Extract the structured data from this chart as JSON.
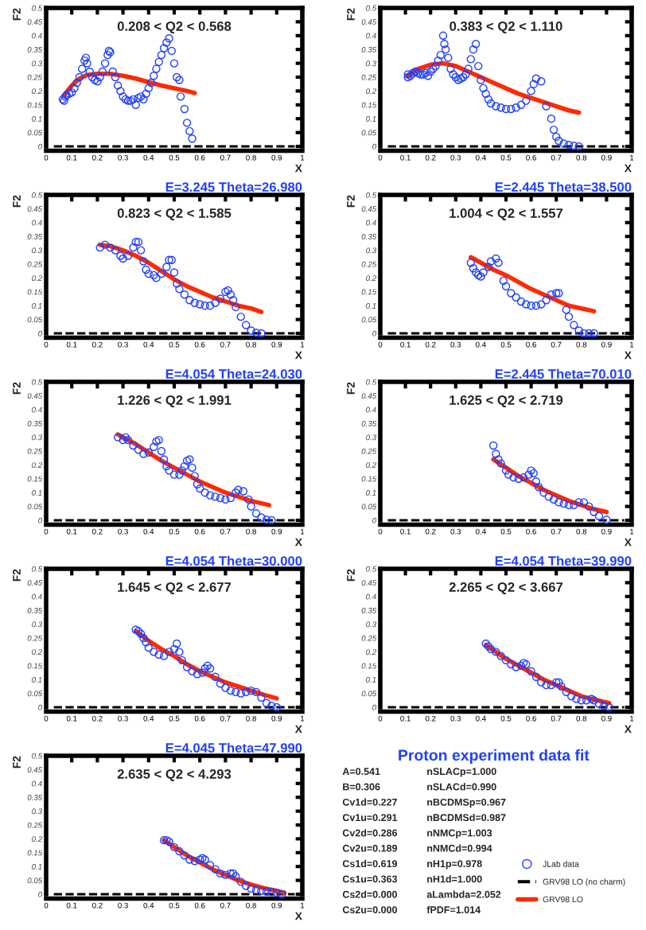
{
  "chart_data": [
    {
      "type": "scatter",
      "annotations": [
        "0.208 < Q2 < 0.568"
      ],
      "xlabel": "X",
      "ylabel": "F2",
      "xlim": [
        0,
        1
      ],
      "ylim": [
        0,
        0.5
      ],
      "xticks": [
        0,
        0.1,
        0.2,
        0.3,
        0.4,
        0.5,
        0.6,
        0.7,
        0.8,
        0.9,
        1
      ],
      "yticks": [
        0,
        0.05,
        0.1,
        0.15,
        0.2,
        0.25,
        0.3,
        0.35,
        0.4,
        0.45,
        0.5
      ],
      "series": [
        {
          "type": "scatter",
          "marker": "circle",
          "color": "#2040ff",
          "x": [
            0.065,
            0.07,
            0.075,
            0.08,
            0.09,
            0.1,
            0.11,
            0.12,
            0.13,
            0.14,
            0.15,
            0.155,
            0.16,
            0.17,
            0.18,
            0.19,
            0.2,
            0.21,
            0.22,
            0.23,
            0.24,
            0.245,
            0.25,
            0.26,
            0.27,
            0.28,
            0.29,
            0.3,
            0.31,
            0.32,
            0.33,
            0.34,
            0.35,
            0.36,
            0.37,
            0.38,
            0.39,
            0.4,
            0.41,
            0.42,
            0.43,
            0.44,
            0.45,
            0.46,
            0.47,
            0.48,
            0.49,
            0.5,
            0.51,
            0.52,
            0.525,
            0.54,
            0.55,
            0.56,
            0.57
          ],
          "values": [
            0.17,
            0.165,
            0.18,
            0.185,
            0.19,
            0.195,
            0.21,
            0.23,
            0.25,
            0.28,
            0.31,
            0.32,
            0.3,
            0.27,
            0.25,
            0.24,
            0.235,
            0.25,
            0.27,
            0.3,
            0.33,
            0.345,
            0.34,
            0.27,
            0.25,
            0.22,
            0.2,
            0.18,
            0.17,
            0.165,
            0.165,
            0.17,
            0.15,
            0.175,
            0.18,
            0.17,
            0.19,
            0.21,
            0.23,
            0.255,
            0.28,
            0.305,
            0.33,
            0.355,
            0.375,
            0.39,
            0.345,
            0.3,
            0.25,
            0.24,
            0.18,
            0.135,
            0.085,
            0.055,
            0.028
          ]
        },
        {
          "type": "line",
          "color": "#ff2a00",
          "line_style": "solid",
          "x": [
            0.07,
            0.1,
            0.13,
            0.16,
            0.2,
            0.25,
            0.3,
            0.35,
            0.4,
            0.45,
            0.5,
            0.55,
            0.58
          ],
          "values": [
            0.185,
            0.22,
            0.245,
            0.258,
            0.262,
            0.262,
            0.255,
            0.245,
            0.232,
            0.22,
            0.21,
            0.2,
            0.193
          ]
        },
        {
          "type": "line",
          "color": "#000000",
          "line_style": "dashed",
          "x": [
            0.03,
            0.97
          ],
          "values": [
            0,
            0
          ]
        }
      ]
    },
    {
      "type": "scatter",
      "annotations": [
        "0.383 < Q2 < 1.110"
      ],
      "xlabel": "X",
      "ylabel": "F2",
      "xlim": [
        0,
        1
      ],
      "ylim": [
        0,
        0.5
      ],
      "xticks": [
        0,
        0.1,
        0.2,
        0.3,
        0.4,
        0.5,
        0.6,
        0.7,
        0.8,
        0.9,
        1
      ],
      "yticks": [
        0,
        0.05,
        0.1,
        0.15,
        0.2,
        0.25,
        0.3,
        0.35,
        0.4,
        0.45,
        0.5
      ],
      "series": [
        {
          "type": "scatter",
          "marker": "circle",
          "color": "#2040ff",
          "x": [
            0.11,
            0.11,
            0.12,
            0.13,
            0.14,
            0.15,
            0.16,
            0.17,
            0.18,
            0.19,
            0.2,
            0.21,
            0.22,
            0.23,
            0.24,
            0.25,
            0.255,
            0.26,
            0.27,
            0.28,
            0.29,
            0.3,
            0.31,
            0.32,
            0.33,
            0.34,
            0.35,
            0.36,
            0.37,
            0.38,
            0.39,
            0.4,
            0.41,
            0.42,
            0.43,
            0.44,
            0.46,
            0.48,
            0.5,
            0.52,
            0.54,
            0.56,
            0.58,
            0.6,
            0.61,
            0.62,
            0.64,
            0.66,
            0.68,
            0.69,
            0.7,
            0.71,
            0.73,
            0.75,
            0.77,
            0.79
          ],
          "values": [
            0.26,
            0.25,
            0.255,
            0.265,
            0.27,
            0.265,
            0.26,
            0.26,
            0.265,
            0.255,
            0.27,
            0.28,
            0.29,
            0.31,
            0.33,
            0.4,
            0.37,
            0.35,
            0.32,
            0.28,
            0.26,
            0.25,
            0.24,
            0.245,
            0.25,
            0.26,
            0.28,
            0.315,
            0.35,
            0.37,
            0.29,
            0.24,
            0.21,
            0.19,
            0.17,
            0.155,
            0.145,
            0.14,
            0.135,
            0.135,
            0.14,
            0.15,
            0.165,
            0.2,
            0.225,
            0.245,
            0.235,
            0.145,
            0.1,
            0.06,
            0.035,
            0.02,
            0.01,
            0.005,
            0.002,
            0
          ]
        },
        {
          "type": "line",
          "color": "#ff2a00",
          "line_style": "solid",
          "x": [
            0.11,
            0.15,
            0.2,
            0.25,
            0.3,
            0.35,
            0.4,
            0.45,
            0.5,
            0.55,
            0.6,
            0.65,
            0.7,
            0.75,
            0.79
          ],
          "values": [
            0.255,
            0.28,
            0.295,
            0.3,
            0.29,
            0.27,
            0.25,
            0.23,
            0.21,
            0.19,
            0.175,
            0.16,
            0.145,
            0.13,
            0.122
          ]
        },
        {
          "type": "line",
          "color": "#000000",
          "line_style": "dashed",
          "x": [
            0.03,
            0.97
          ],
          "values": [
            0,
            0
          ]
        }
      ]
    },
    {
      "type": "scatter",
      "title": "E=3.245 Theta=26.980",
      "annotations": [
        "0.823 < Q2 < 1.585"
      ],
      "xlabel": "X",
      "ylabel": "F2",
      "xlim": [
        0,
        1
      ],
      "ylim": [
        0,
        0.5
      ],
      "xticks": [
        0,
        0.1,
        0.2,
        0.3,
        0.4,
        0.5,
        0.6,
        0.7,
        0.8,
        0.9,
        1
      ],
      "yticks": [
        0,
        0.05,
        0.1,
        0.15,
        0.2,
        0.25,
        0.3,
        0.35,
        0.4,
        0.45,
        0.5
      ],
      "series": [
        {
          "type": "scatter",
          "marker": "circle",
          "color": "#2040ff",
          "x": [
            0.21,
            0.23,
            0.25,
            0.27,
            0.29,
            0.3,
            0.32,
            0.34,
            0.35,
            0.36,
            0.37,
            0.38,
            0.39,
            0.4,
            0.42,
            0.43,
            0.45,
            0.47,
            0.48,
            0.49,
            0.5,
            0.51,
            0.52,
            0.54,
            0.56,
            0.58,
            0.6,
            0.62,
            0.64,
            0.66,
            0.68,
            0.7,
            0.71,
            0.72,
            0.73,
            0.74,
            0.76,
            0.78,
            0.8,
            0.82,
            0.84
          ],
          "values": [
            0.31,
            0.32,
            0.31,
            0.3,
            0.28,
            0.27,
            0.28,
            0.31,
            0.33,
            0.33,
            0.3,
            0.26,
            0.23,
            0.215,
            0.21,
            0.2,
            0.215,
            0.24,
            0.265,
            0.265,
            0.22,
            0.18,
            0.16,
            0.14,
            0.12,
            0.11,
            0.105,
            0.1,
            0.1,
            0.11,
            0.125,
            0.15,
            0.155,
            0.14,
            0.12,
            0.095,
            0.06,
            0.03,
            0.01,
            0.002,
            0
          ]
        },
        {
          "type": "line",
          "color": "#ff2a00",
          "line_style": "solid",
          "x": [
            0.21,
            0.25,
            0.3,
            0.35,
            0.4,
            0.45,
            0.5,
            0.55,
            0.6,
            0.65,
            0.7,
            0.75,
            0.8,
            0.84
          ],
          "values": [
            0.32,
            0.315,
            0.3,
            0.28,
            0.255,
            0.225,
            0.195,
            0.17,
            0.15,
            0.13,
            0.115,
            0.1,
            0.09,
            0.077
          ]
        },
        {
          "type": "line",
          "color": "#000000",
          "line_style": "dashed",
          "x": [
            0.03,
            0.97
          ],
          "values": [
            0,
            0
          ]
        }
      ]
    },
    {
      "type": "scatter",
      "title": "E=2.445 Theta=38.500",
      "annotations": [
        "1.004 < Q2 < 1.557"
      ],
      "xlabel": "X",
      "ylabel": "F2",
      "xlim": [
        0,
        1
      ],
      "ylim": [
        0,
        0.5
      ],
      "xticks": [
        0,
        0.1,
        0.2,
        0.3,
        0.4,
        0.5,
        0.6,
        0.7,
        0.8,
        0.9,
        1
      ],
      "yticks": [
        0,
        0.05,
        0.1,
        0.15,
        0.2,
        0.25,
        0.3,
        0.35,
        0.4,
        0.45,
        0.5
      ],
      "series": [
        {
          "type": "scatter",
          "marker": "circle",
          "color": "#2040ff",
          "x": [
            0.36,
            0.37,
            0.38,
            0.39,
            0.4,
            0.41,
            0.43,
            0.44,
            0.46,
            0.47,
            0.49,
            0.5,
            0.52,
            0.54,
            0.56,
            0.58,
            0.6,
            0.62,
            0.64,
            0.66,
            0.68,
            0.7,
            0.71,
            0.74,
            0.75,
            0.77,
            0.79,
            0.81,
            0.83,
            0.85
          ],
          "values": [
            0.255,
            0.235,
            0.22,
            0.21,
            0.205,
            0.22,
            0.24,
            0.26,
            0.27,
            0.255,
            0.19,
            0.17,
            0.145,
            0.13,
            0.115,
            0.105,
            0.1,
            0.1,
            0.105,
            0.12,
            0.14,
            0.145,
            0.145,
            0.085,
            0.06,
            0.03,
            0.01,
            0,
            0,
            0
          ]
        },
        {
          "type": "line",
          "color": "#ff2a00",
          "line_style": "solid",
          "x": [
            0.36,
            0.4,
            0.45,
            0.5,
            0.55,
            0.6,
            0.65,
            0.7,
            0.75,
            0.8,
            0.85
          ],
          "values": [
            0.275,
            0.255,
            0.23,
            0.21,
            0.185,
            0.16,
            0.14,
            0.12,
            0.1,
            0.09,
            0.08
          ]
        },
        {
          "type": "line",
          "color": "#000000",
          "line_style": "dashed",
          "x": [
            0.03,
            0.97
          ],
          "values": [
            0,
            0
          ]
        }
      ]
    },
    {
      "type": "scatter",
      "title": "E=4.054 Theta=24.030",
      "annotations": [
        "1.226 < Q2 < 1.991"
      ],
      "xlabel": "X",
      "ylabel": "F2",
      "xlim": [
        0,
        1
      ],
      "ylim": [
        0,
        0.5
      ],
      "xticks": [
        0,
        0.1,
        0.2,
        0.3,
        0.4,
        0.5,
        0.6,
        0.7,
        0.8,
        0.9,
        1
      ],
      "yticks": [
        0,
        0.05,
        0.1,
        0.15,
        0.2,
        0.25,
        0.3,
        0.35,
        0.4,
        0.45,
        0.5
      ],
      "series": [
        {
          "type": "scatter",
          "marker": "circle",
          "color": "#2040ff",
          "x": [
            0.28,
            0.3,
            0.31,
            0.32,
            0.34,
            0.36,
            0.38,
            0.4,
            0.42,
            0.43,
            0.44,
            0.45,
            0.46,
            0.47,
            0.48,
            0.5,
            0.52,
            0.53,
            0.54,
            0.55,
            0.56,
            0.57,
            0.58,
            0.59,
            0.6,
            0.62,
            0.64,
            0.66,
            0.68,
            0.7,
            0.72,
            0.74,
            0.75,
            0.77,
            0.79,
            0.8,
            0.82,
            0.84,
            0.86,
            0.88
          ],
          "values": [
            0.3,
            0.29,
            0.3,
            0.29,
            0.27,
            0.255,
            0.24,
            0.245,
            0.265,
            0.285,
            0.29,
            0.25,
            0.22,
            0.195,
            0.18,
            0.165,
            0.165,
            0.18,
            0.195,
            0.215,
            0.22,
            0.19,
            0.16,
            0.13,
            0.115,
            0.1,
            0.09,
            0.085,
            0.08,
            0.075,
            0.08,
            0.1,
            0.11,
            0.105,
            0.075,
            0.05,
            0.025,
            0.01,
            0.002,
            0
          ]
        },
        {
          "type": "line",
          "color": "#ff2a00",
          "line_style": "solid",
          "x": [
            0.28,
            0.35,
            0.4,
            0.45,
            0.5,
            0.55,
            0.6,
            0.65,
            0.7,
            0.75,
            0.8,
            0.87
          ],
          "values": [
            0.31,
            0.275,
            0.245,
            0.215,
            0.19,
            0.165,
            0.14,
            0.12,
            0.1,
            0.085,
            0.07,
            0.055
          ]
        },
        {
          "type": "line",
          "color": "#000000",
          "line_style": "dashed",
          "x": [
            0.03,
            0.97
          ],
          "values": [
            0,
            0
          ]
        }
      ]
    },
    {
      "type": "scatter",
      "title": "E=2.445 Theta=70.010",
      "annotations": [
        "1.625 < Q2 < 2.719"
      ],
      "xlabel": "X",
      "ylabel": "F2",
      "xlim": [
        0,
        1
      ],
      "ylim": [
        0,
        0.5
      ],
      "xticks": [
        0,
        0.1,
        0.2,
        0.3,
        0.4,
        0.5,
        0.6,
        0.7,
        0.8,
        0.9,
        1
      ],
      "yticks": [
        0,
        0.05,
        0.1,
        0.15,
        0.2,
        0.25,
        0.3,
        0.35,
        0.4,
        0.45,
        0.5
      ],
      "series": [
        {
          "type": "scatter",
          "marker": "circle",
          "color": "#2040ff",
          "x": [
            0.45,
            0.46,
            0.47,
            0.48,
            0.5,
            0.51,
            0.53,
            0.55,
            0.57,
            0.59,
            0.6,
            0.61,
            0.62,
            0.63,
            0.65,
            0.67,
            0.69,
            0.71,
            0.73,
            0.75,
            0.77,
            0.79,
            0.81,
            0.83,
            0.85,
            0.87,
            0.9
          ],
          "values": [
            0.27,
            0.24,
            0.22,
            0.205,
            0.18,
            0.165,
            0.155,
            0.15,
            0.155,
            0.165,
            0.18,
            0.17,
            0.14,
            0.12,
            0.1,
            0.085,
            0.075,
            0.065,
            0.06,
            0.055,
            0.055,
            0.065,
            0.065,
            0.05,
            0.03,
            0.015,
            0.002
          ]
        },
        {
          "type": "line",
          "color": "#ff2a00",
          "line_style": "solid",
          "x": [
            0.45,
            0.5,
            0.55,
            0.6,
            0.65,
            0.7,
            0.75,
            0.8,
            0.85,
            0.9
          ],
          "values": [
            0.22,
            0.19,
            0.16,
            0.135,
            0.11,
            0.09,
            0.07,
            0.055,
            0.04,
            0.03
          ]
        },
        {
          "type": "line",
          "color": "#000000",
          "line_style": "dashed",
          "x": [
            0.03,
            0.97
          ],
          "values": [
            0,
            0
          ]
        }
      ]
    },
    {
      "type": "scatter",
      "title": "E=4.054 Theta=30.000",
      "annotations": [
        "1.645 < Q2 < 2.677"
      ],
      "xlabel": "X",
      "ylabel": "F2",
      "xlim": [
        0,
        1
      ],
      "ylim": [
        0,
        0.5
      ],
      "xticks": [
        0,
        0.1,
        0.2,
        0.3,
        0.4,
        0.5,
        0.6,
        0.7,
        0.8,
        0.9,
        1
      ],
      "yticks": [
        0,
        0.05,
        0.1,
        0.15,
        0.2,
        0.25,
        0.3,
        0.35,
        0.4,
        0.45,
        0.5
      ],
      "series": [
        {
          "type": "scatter",
          "marker": "circle",
          "color": "#2040ff",
          "x": [
            0.35,
            0.36,
            0.37,
            0.38,
            0.39,
            0.4,
            0.42,
            0.44,
            0.46,
            0.48,
            0.5,
            0.51,
            0.52,
            0.53,
            0.55,
            0.57,
            0.59,
            0.61,
            0.62,
            0.63,
            0.64,
            0.66,
            0.68,
            0.7,
            0.72,
            0.74,
            0.76,
            0.78,
            0.8,
            0.82,
            0.84,
            0.86,
            0.88,
            0.9
          ],
          "values": [
            0.28,
            0.275,
            0.265,
            0.25,
            0.235,
            0.215,
            0.2,
            0.19,
            0.185,
            0.2,
            0.21,
            0.23,
            0.2,
            0.17,
            0.145,
            0.13,
            0.12,
            0.125,
            0.14,
            0.15,
            0.14,
            0.11,
            0.085,
            0.07,
            0.06,
            0.055,
            0.05,
            0.055,
            0.06,
            0.055,
            0.035,
            0.015,
            0.005,
            0
          ]
        },
        {
          "type": "line",
          "color": "#ff2a00",
          "line_style": "solid",
          "x": [
            0.35,
            0.4,
            0.45,
            0.5,
            0.55,
            0.6,
            0.65,
            0.7,
            0.75,
            0.8,
            0.85,
            0.9
          ],
          "values": [
            0.275,
            0.24,
            0.21,
            0.185,
            0.155,
            0.13,
            0.11,
            0.09,
            0.075,
            0.06,
            0.045,
            0.032
          ]
        },
        {
          "type": "line",
          "color": "#000000",
          "line_style": "dashed",
          "x": [
            0.03,
            0.97
          ],
          "values": [
            0,
            0
          ]
        }
      ]
    },
    {
      "type": "scatter",
      "title": "E=4.054 Theta=39.990",
      "annotations": [
        "2.265 < Q2 < 3.667"
      ],
      "xlabel": "X",
      "ylabel": "F2",
      "xlim": [
        0,
        1
      ],
      "ylim": [
        0,
        0.5
      ],
      "xticks": [
        0,
        0.1,
        0.2,
        0.3,
        0.4,
        0.5,
        0.6,
        0.7,
        0.8,
        0.9,
        1
      ],
      "yticks": [
        0,
        0.05,
        0.1,
        0.15,
        0.2,
        0.25,
        0.3,
        0.35,
        0.4,
        0.45,
        0.5
      ],
      "series": [
        {
          "type": "scatter",
          "marker": "circle",
          "color": "#2040ff",
          "x": [
            0.42,
            0.43,
            0.44,
            0.46,
            0.48,
            0.5,
            0.52,
            0.54,
            0.56,
            0.57,
            0.58,
            0.6,
            0.62,
            0.64,
            0.66,
            0.68,
            0.7,
            0.71,
            0.72,
            0.74,
            0.76,
            0.78,
            0.8,
            0.82,
            0.84,
            0.85,
            0.87,
            0.89,
            0.91
          ],
          "values": [
            0.23,
            0.22,
            0.21,
            0.2,
            0.185,
            0.17,
            0.155,
            0.145,
            0.15,
            0.16,
            0.155,
            0.13,
            0.11,
            0.09,
            0.08,
            0.08,
            0.09,
            0.09,
            0.075,
            0.055,
            0.04,
            0.03,
            0.025,
            0.025,
            0.03,
            0.025,
            0.012,
            0.005,
            0
          ]
        },
        {
          "type": "line",
          "color": "#ff2a00",
          "line_style": "solid",
          "x": [
            0.42,
            0.5,
            0.55,
            0.6,
            0.65,
            0.7,
            0.75,
            0.8,
            0.85,
            0.91
          ],
          "values": [
            0.225,
            0.175,
            0.15,
            0.125,
            0.1,
            0.08,
            0.06,
            0.04,
            0.028,
            0.015
          ]
        },
        {
          "type": "line",
          "color": "#000000",
          "line_style": "dashed",
          "x": [
            0.03,
            0.97
          ],
          "values": [
            0,
            0
          ]
        }
      ]
    },
    {
      "type": "scatter",
      "title": "E=4.045 Theta=47.990",
      "annotations": [
        "2.635 < Q2 < 4.293"
      ],
      "xlabel": "X",
      "ylabel": "F2",
      "xlim": [
        0,
        1
      ],
      "ylim": [
        0,
        0.5
      ],
      "xticks": [
        0,
        0.1,
        0.2,
        0.3,
        0.4,
        0.5,
        0.6,
        0.7,
        0.8,
        0.9,
        1
      ],
      "yticks": [
        0,
        0.05,
        0.1,
        0.15,
        0.2,
        0.25,
        0.3,
        0.35,
        0.4,
        0.45,
        0.5
      ],
      "legend": "right",
      "series": [
        {
          "type": "scatter",
          "marker": "circle",
          "name": "JLab data",
          "color": "#2040ff",
          "x": [
            0.46,
            0.47,
            0.48,
            0.5,
            0.52,
            0.54,
            0.56,
            0.58,
            0.6,
            0.61,
            0.62,
            0.64,
            0.66,
            0.68,
            0.7,
            0.72,
            0.73,
            0.74,
            0.76,
            0.78,
            0.8,
            0.82,
            0.84,
            0.86,
            0.88,
            0.9,
            0.92
          ],
          "values": [
            0.195,
            0.195,
            0.19,
            0.17,
            0.155,
            0.14,
            0.125,
            0.12,
            0.125,
            0.13,
            0.125,
            0.105,
            0.09,
            0.075,
            0.07,
            0.075,
            0.075,
            0.065,
            0.045,
            0.03,
            0.02,
            0.015,
            0.012,
            0.01,
            0.008,
            0.005,
            0
          ]
        },
        {
          "type": "line",
          "name": "GRV98 LO (no charm)",
          "color": "#000000",
          "line_style": "dashed",
          "x": [
            0.03,
            0.97
          ],
          "values": [
            0,
            0
          ]
        },
        {
          "type": "line",
          "name": "GRV98 LO",
          "color": "#ff2a00",
          "line_style": "solid",
          "x": [
            0.46,
            0.5,
            0.55,
            0.6,
            0.65,
            0.7,
            0.75,
            0.8,
            0.85,
            0.9,
            0.93
          ],
          "values": [
            0.195,
            0.17,
            0.14,
            0.115,
            0.09,
            0.07,
            0.05,
            0.035,
            0.022,
            0.012,
            0.005
          ]
        }
      ]
    },
    {
      "type": "other",
      "title": "Proton experiment data fit",
      "annotations": [
        "A=0.541",
        "B=0.306",
        "Cv1d=0.227",
        "Cv1u=0.291",
        "Cv2d=0.286",
        "Cv2u=0.189",
        "Cs1d=0.619",
        "Cs1u=0.363",
        "Cs2d=0.000",
        "Cs2u=0.000",
        "nSLACp=1.000",
        "nSLACd=0.990",
        "nBCDMSp=0.967",
        "nBCDMSd=0.987",
        "nNMCp=1.003",
        "nNMCd=0.994",
        "nH1p=0.978",
        "nH1d=1.000",
        "aLambda=2.052",
        "fPDF=1.014"
      ]
    }
  ]
}
